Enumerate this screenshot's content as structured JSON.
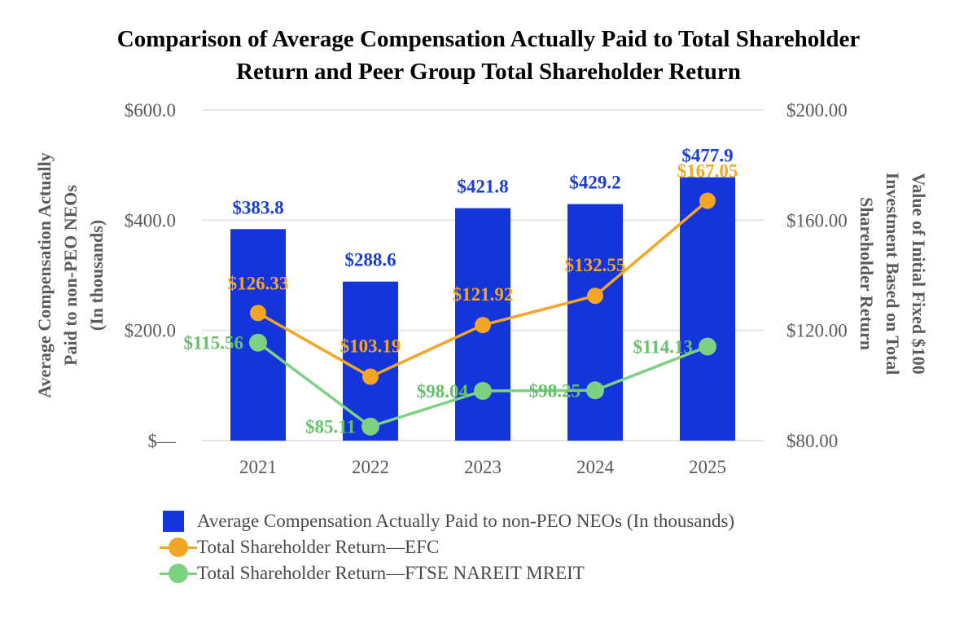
{
  "title_line1": "Comparison of Average Compensation Actually Paid to Total Shareholder",
  "title_line2": "Return and Peer Group Total Shareholder Return",
  "colors": {
    "bar": "#1434dc",
    "bar_label": "#1a3fd0",
    "efc": "#f2a623",
    "ftse": "#7dd182",
    "ftse_label": "#66c06b",
    "grid": "#e6e6e6"
  },
  "chart_data": {
    "type": "bar",
    "categories": [
      "2021",
      "2022",
      "2023",
      "2024",
      "2025"
    ],
    "y_left": {
      "label": "Average Compensation Actually Paid to non-PEO NEOs (In thousands)",
      "label_lines": [
        "Average Compensation Actually",
        "Paid to non-PEO NEOs",
        "(In thousands)"
      ],
      "ticks": [
        "$—",
        "$200.0",
        "$400.0",
        "$600.0"
      ],
      "range": [
        0,
        600
      ]
    },
    "y_right": {
      "label": "Value of Initial Fixed $100 Investment Based on Total Shareholder Return",
      "label_lines": [
        "Value of Initial  Fixed $100",
        "Investment Based on Total",
        "Shareholder Return"
      ],
      "ticks": [
        "$80.00",
        "$120.00",
        "$160.00",
        "$200.00"
      ],
      "range": [
        80,
        200
      ]
    },
    "series": [
      {
        "name": "Average Compensation Actually Paid to non-PEO NEOs (In thousands)",
        "kind": "bar",
        "axis": "left",
        "values": [
          383.8,
          288.6,
          421.8,
          429.2,
          477.9
        ],
        "labels": [
          "$383.8",
          "$288.6",
          "$421.8",
          "$429.2",
          "$477.9"
        ]
      },
      {
        "name": "Total Shareholder Return—EFC",
        "kind": "line",
        "axis": "right",
        "values": [
          126.33,
          103.19,
          121.92,
          132.55,
          167.05
        ],
        "labels": [
          "$126.33",
          "$103.19",
          "$121.92",
          "$132.55",
          "$167.05"
        ]
      },
      {
        "name": "Total Shareholder Return—FTSE NAREIT MREIT",
        "kind": "line",
        "axis": "right",
        "values": [
          115.56,
          85.11,
          98.04,
          98.25,
          114.13
        ],
        "labels": [
          "$115.56",
          "$85.11",
          "$98.04",
          "$98.25",
          "$114.13"
        ]
      }
    ],
    "grid": true,
    "legend_position": "bottom"
  }
}
